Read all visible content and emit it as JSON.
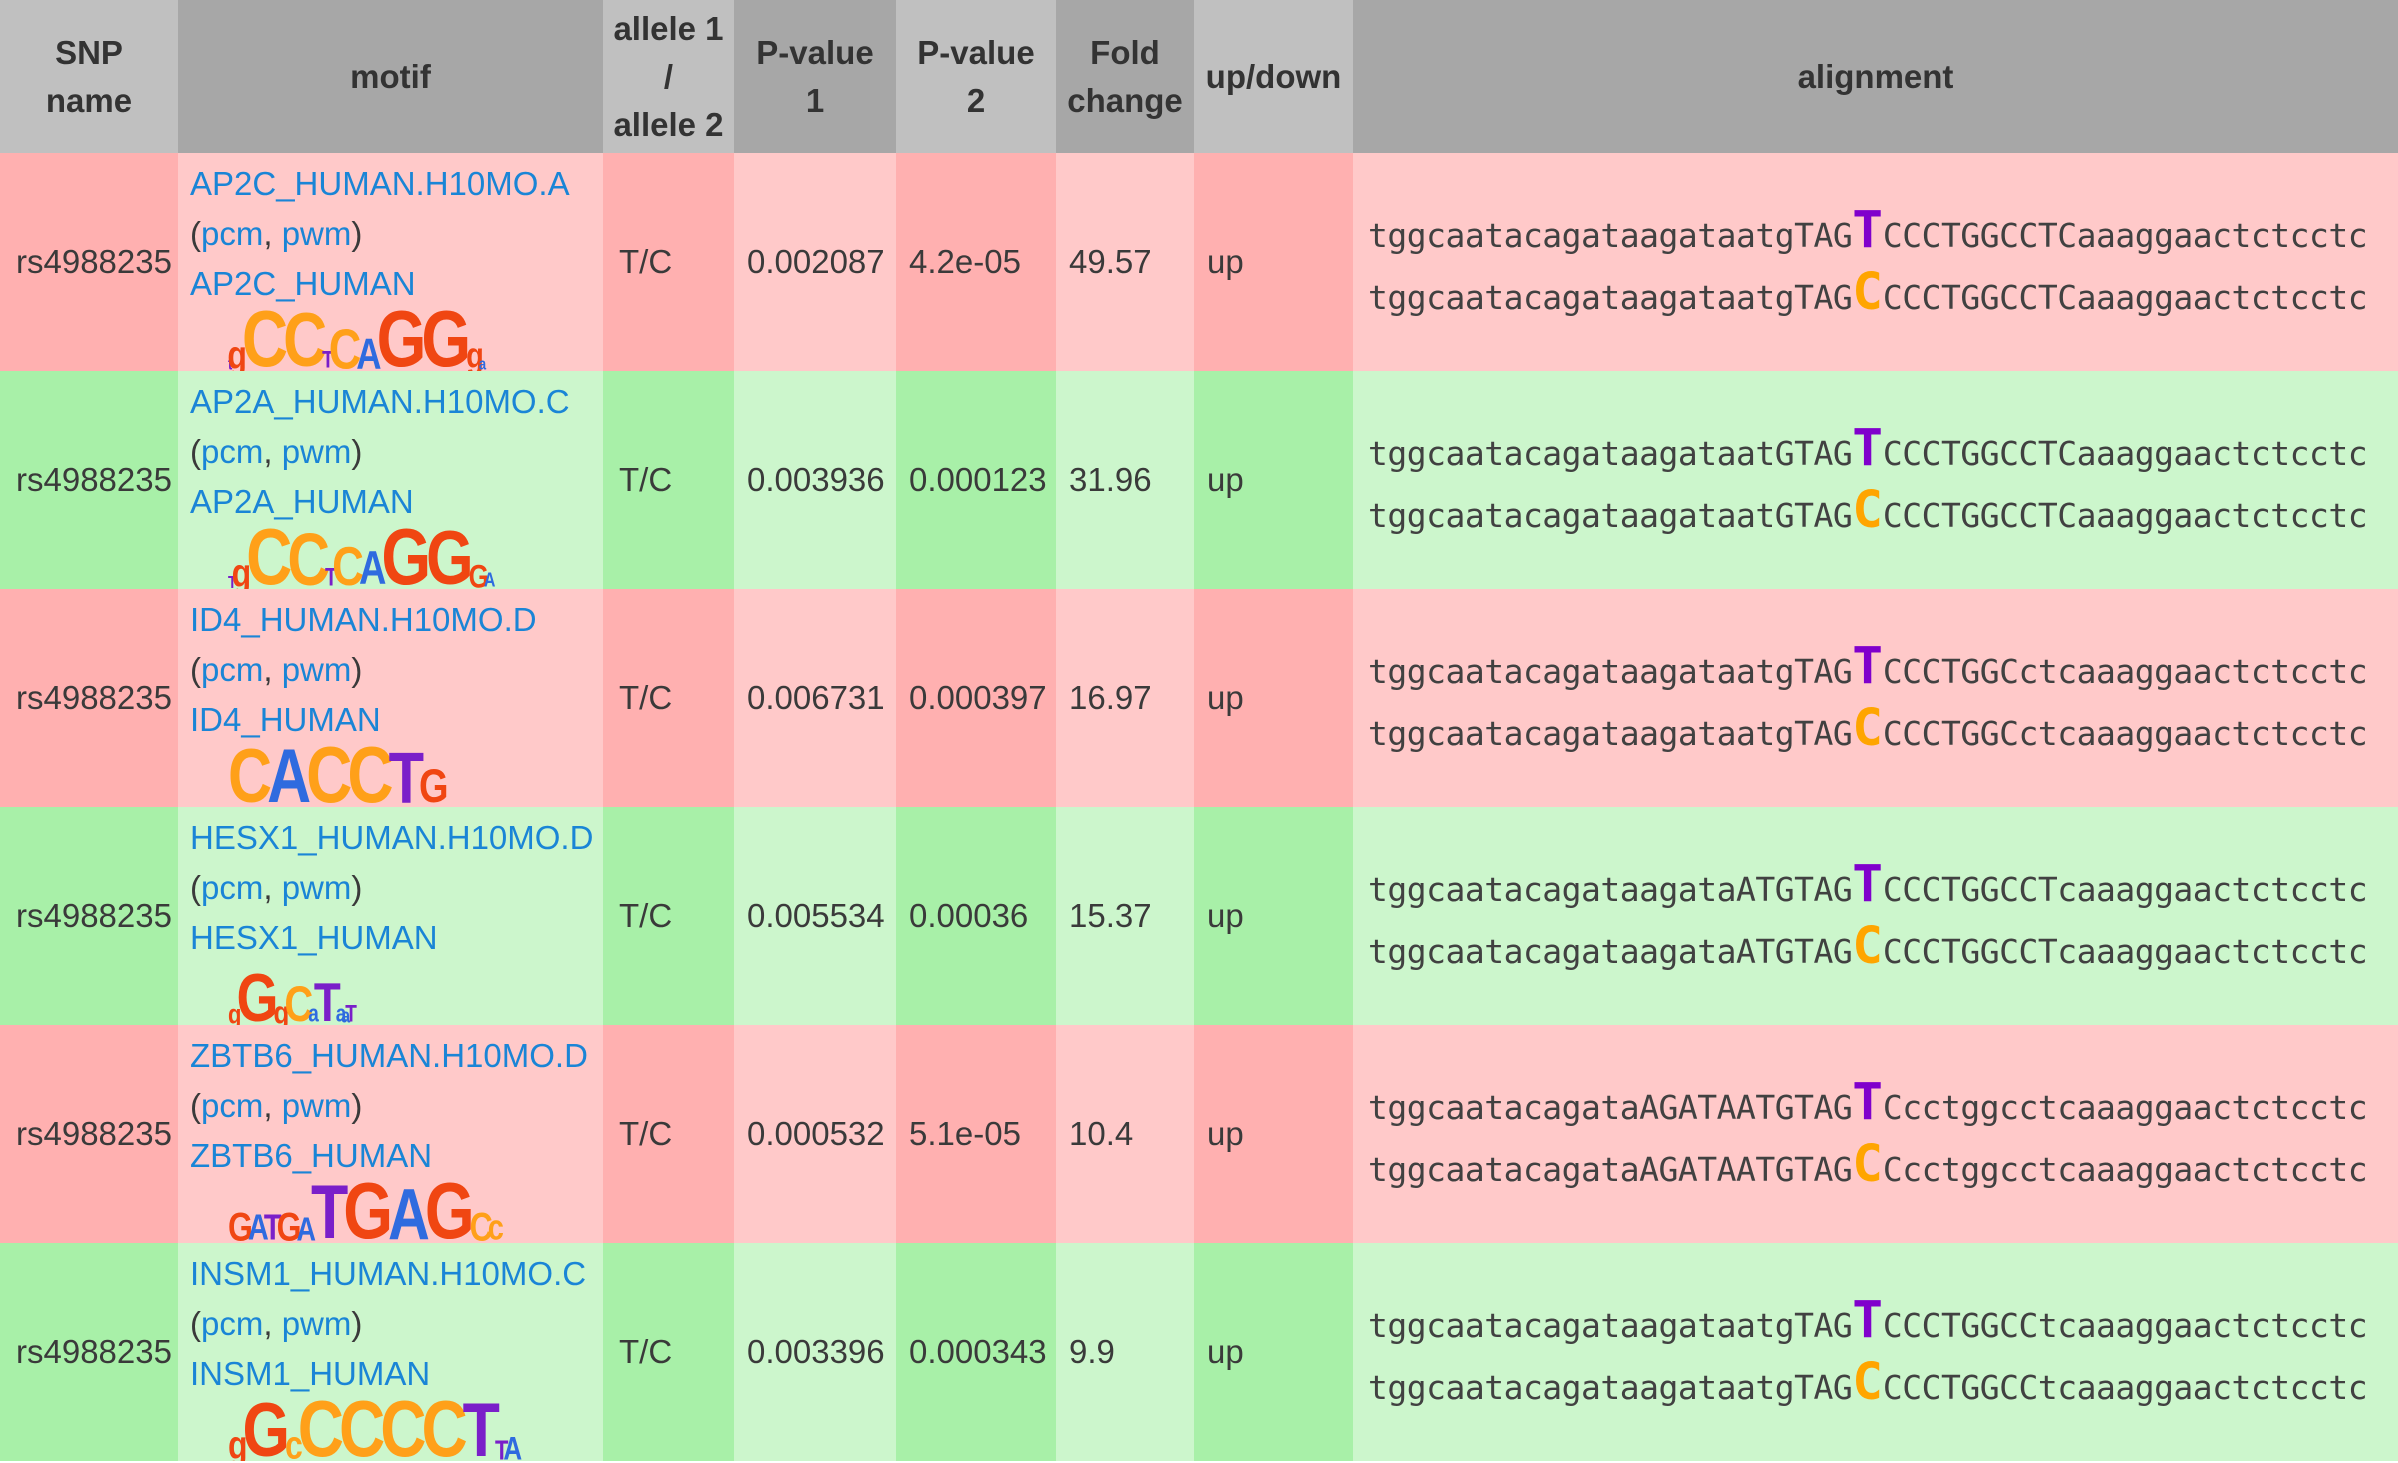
{
  "colors": {
    "header_light": "#c0c0c0",
    "header_dark": "#a7a7a7",
    "header_text": "#333333",
    "text": "#3a3a3a",
    "seq_text": "#414141",
    "link": "#1a85d6",
    "red_dark": "#ffb0b0",
    "red_light": "#ffc9c9",
    "green_dark": "#a8f0a8",
    "green_light": "#ccf6cc",
    "allele1": "#8000cc",
    "allele2": "#ffa500",
    "logo": {
      "A": "#2f6bdf",
      "C": "#ffa019",
      "G": "#f04612",
      "T": "#7a1fc9"
    }
  },
  "shared": {
    "open_paren": "(",
    "comma_sep": ", ",
    "close_paren": ")"
  },
  "table": {
    "headers": [
      "SNP\nname",
      "motif",
      "allele 1\n/\nallele 2",
      "P-value\n1",
      "P-value\n2",
      "Fold\nchange",
      "up/down",
      "alignment"
    ],
    "rows": [
      {
        "tone": "red",
        "snp": "rs4988235",
        "motif_link": "AP2C_HUMAN.H10MO.A",
        "pcm_label": "pcm",
        "pwm_label": "pwm",
        "family_link": "AP2C_HUMAN",
        "logo": [
          [
            "t",
            0.2
          ],
          [
            "g",
            0.5
          ],
          [
            "C",
            1
          ],
          [
            "C",
            0.95
          ],
          [
            "T",
            0.3
          ],
          [
            "C",
            0.7
          ],
          [
            "A",
            0.55
          ],
          [
            "G",
            1
          ],
          [
            "G",
            1
          ],
          [
            "g",
            0.45
          ],
          [
            "a",
            0.2
          ]
        ],
        "allele": "T/C",
        "pvalue1": "0.002087",
        "pvalue2": "4.2e-05",
        "fold_change": "49.57",
        "direction": "up",
        "alignment": {
          "before": "tggcaatacagataagataatgTAG",
          "allele1": "T",
          "allele2": "C",
          "after": "CCCTGGCCTCaaaggaactctcctc"
        }
      },
      {
        "tone": "green",
        "snp": "rs4988235",
        "motif_link": "AP2A_HUMAN.H10MO.C",
        "pcm_label": "pcm",
        "pwm_label": "pwm",
        "family_link": "AP2A_HUMAN",
        "logo": [
          [
            "T",
            0.22
          ],
          [
            "g",
            0.5
          ],
          [
            "C",
            1
          ],
          [
            "C",
            0.92
          ],
          [
            "T",
            0.32
          ],
          [
            "C",
            0.68
          ],
          [
            "A",
            0.6
          ],
          [
            "G",
            1
          ],
          [
            "G",
            0.95
          ],
          [
            "G",
            0.4
          ],
          [
            "A",
            0.25
          ]
        ],
        "allele": "T/C",
        "pvalue1": "0.003936",
        "pvalue2": "0.000123",
        "fold_change": "31.96",
        "direction": "up",
        "alignment": {
          "before": "tggcaatacagataagataatGTAG",
          "allele1": "T",
          "allele2": "C",
          "after": "CCCTGGCCTCaaaggaactctcctc"
        }
      },
      {
        "tone": "red",
        "snp": "rs4988235",
        "motif_link": "ID4_HUMAN.H10MO.D",
        "pcm_label": "pcm",
        "pwm_label": "pwm",
        "family_link": "ID4_HUMAN",
        "logo": [
          [
            "C",
            0.95
          ],
          [
            "A",
            0.95
          ],
          [
            "C",
            1
          ],
          [
            "C",
            1
          ],
          [
            "T",
            0.9
          ],
          [
            "G",
            0.6
          ]
        ],
        "allele": "T/C",
        "pvalue1": "0.006731",
        "pvalue2": "0.000397",
        "fold_change": "16.97",
        "direction": "up",
        "alignment": {
          "before": "tggcaatacagataagataatgTAG",
          "allele1": "T",
          "allele2": "C",
          "after": "CCCTGGCctcaaaggaactctcctc"
        }
      },
      {
        "tone": "green",
        "snp": "rs4988235",
        "motif_link": "HESX1_HUMAN.H10MO.D",
        "pcm_label": "pcm",
        "pwm_label": "pwm",
        "family_link": "HESX1_HUMAN",
        "logo": [
          [
            "g",
            0.35
          ],
          [
            "G",
            0.85
          ],
          [
            "g",
            0.4
          ],
          [
            "C",
            0.62
          ],
          [
            "a",
            0.3
          ],
          [
            "T",
            0.68
          ],
          [
            "a",
            0.3
          ],
          [
            "a",
            0.25
          ],
          [
            "T",
            0.3
          ]
        ],
        "allele": "T/C",
        "pvalue1": "0.005534",
        "pvalue2": "0.00036",
        "fold_change": "15.37",
        "direction": "up",
        "alignment": {
          "before": "tggcaatacagataagataATGTAG",
          "allele1": "T",
          "allele2": "C",
          "after": "CCCTGGCCTcaaaggaactctcctc"
        }
      },
      {
        "tone": "red",
        "snp": "rs4988235",
        "motif_link": "ZBTB6_HUMAN.H10MO.D",
        "pcm_label": "pcm",
        "pwm_label": "pwm",
        "family_link": "ZBTB6_HUMAN",
        "logo": [
          [
            "G",
            0.5
          ],
          [
            "A",
            0.45
          ],
          [
            "T",
            0.45
          ],
          [
            "G",
            0.5
          ],
          [
            "A",
            0.42
          ],
          [
            "T",
            0.95
          ],
          [
            "G",
            1
          ],
          [
            "A",
            0.9
          ],
          [
            "G",
            1
          ],
          [
            "C",
            0.5
          ],
          [
            "c",
            0.45
          ]
        ],
        "allele": "T/C",
        "pvalue1": "0.000532",
        "pvalue2": "5.1e-05",
        "fold_change": "10.4",
        "direction": "up",
        "alignment": {
          "before": "tggcaatacagataAGATAATGTAG",
          "allele1": "T",
          "allele2": "C",
          "after": "Ccctggcctcaaaggaactctcctc"
        }
      },
      {
        "tone": "green",
        "snp": "rs4988235",
        "motif_link": "INSM1_HUMAN.H10MO.C",
        "pcm_label": "pcm",
        "pwm_label": "pwm",
        "family_link": "INSM1_HUMAN",
        "logo": [
          [
            "g",
            0.5
          ],
          [
            "G",
            0.95
          ],
          [
            "c",
            0.5
          ],
          [
            "C",
            1
          ],
          [
            "C",
            1
          ],
          [
            "C",
            1
          ],
          [
            "C",
            1
          ],
          [
            "T",
            0.95
          ],
          [
            "T",
            0.35
          ],
          [
            "A",
            0.4
          ]
        ],
        "allele": "T/C",
        "pvalue1": "0.003396",
        "pvalue2": "0.000343",
        "fold_change": "9.9",
        "direction": "up",
        "alignment": {
          "before": "tggcaatacagataagataatgTAG",
          "allele1": "T",
          "allele2": "C",
          "after": "CCCTGGCCtcaaaggaactctcctc"
        }
      }
    ]
  }
}
